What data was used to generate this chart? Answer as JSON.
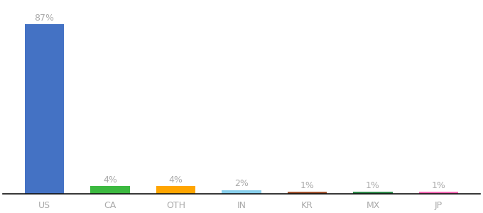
{
  "categories": [
    "US",
    "CA",
    "OTH",
    "IN",
    "KR",
    "MX",
    "JP"
  ],
  "values": [
    87,
    4,
    4,
    2,
    1,
    1,
    1
  ],
  "bar_colors": [
    "#4472C4",
    "#3CB940",
    "#FFA500",
    "#87CEEB",
    "#A0522D",
    "#2E8B4A",
    "#FF69B4"
  ],
  "label_color": "#aaaaaa",
  "bar_label_fontsize": 9,
  "xlabel_fontsize": 9,
  "background_color": "#ffffff",
  "ylim": [
    0,
    98
  ],
  "bar_width": 0.6,
  "figsize": [
    6.8,
    3.0
  ],
  "dpi": 100
}
